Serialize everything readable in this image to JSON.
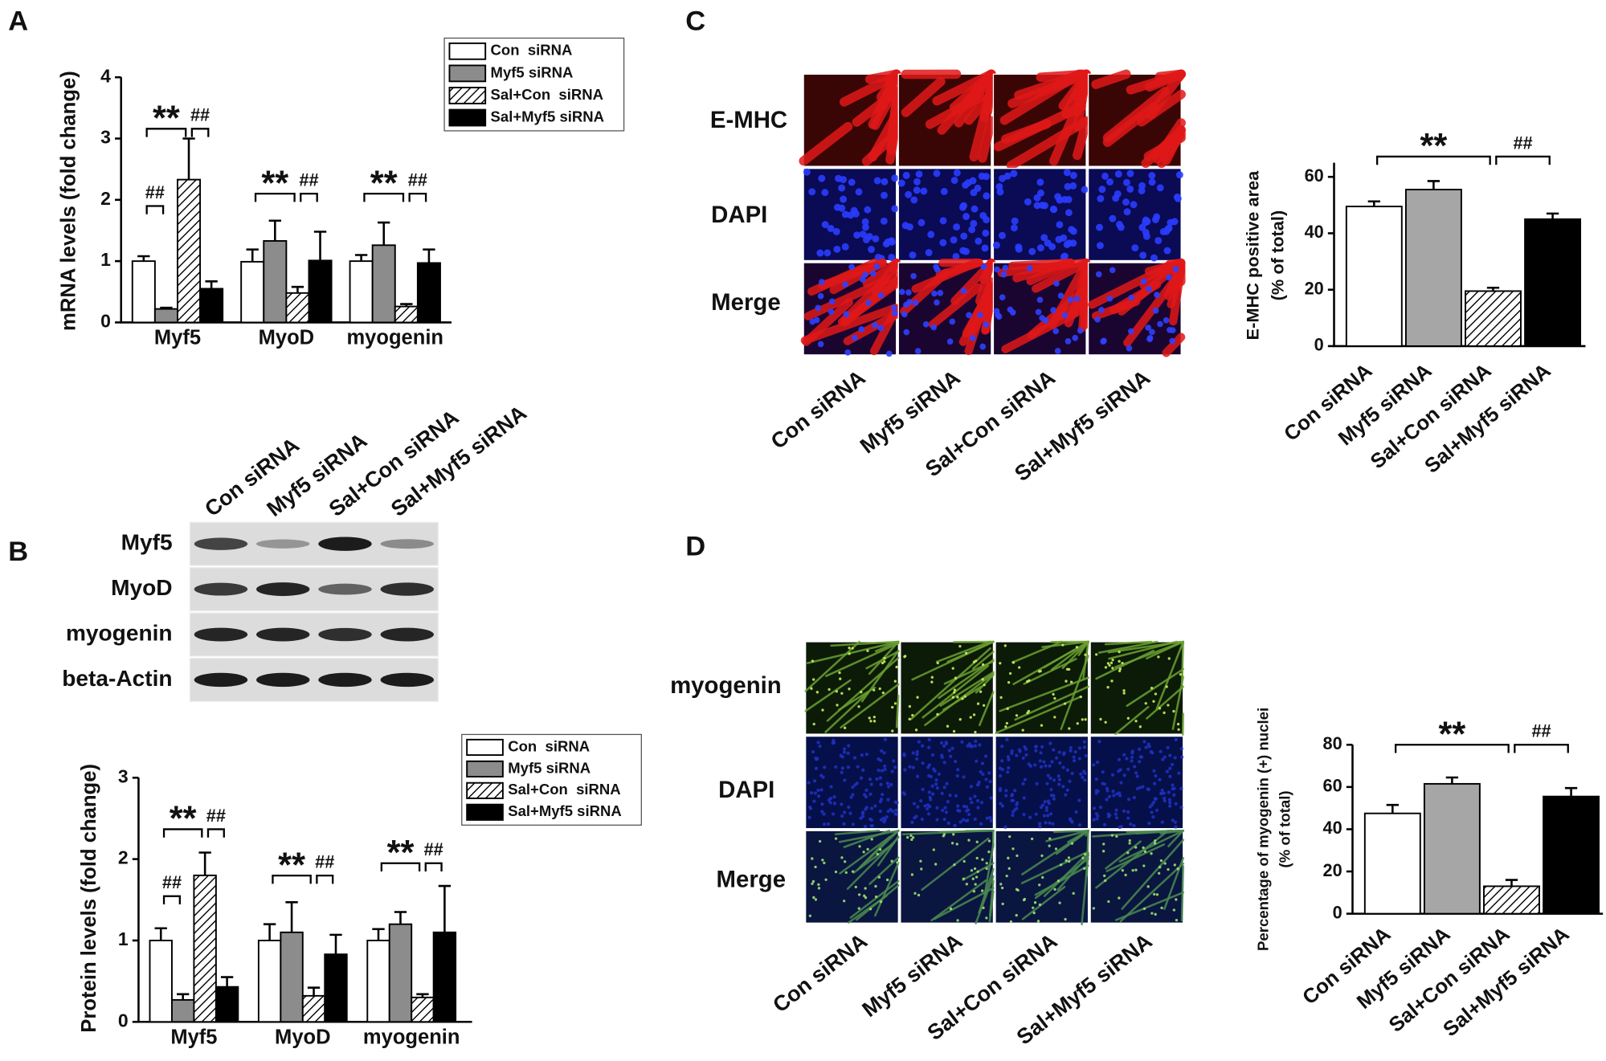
{
  "panel_labels": [
    "A",
    "B",
    "C",
    "D"
  ],
  "blot": {
    "lanes": [
      "Con siRNA",
      "Myf5 siRNA",
      "Sal+Con siRNA",
      "Sal+Myf5 siRNA"
    ],
    "rows": [
      "Myf5",
      "MyoD",
      "myogenin",
      "beta-Actin"
    ]
  },
  "micrograph_c": {
    "columns": [
      "Con siRNA",
      "Myf5 siRNA",
      "Sal+Con siRNA",
      "Sal+Myf5 siRNA"
    ],
    "rows": [
      "E-MHC",
      "DAPI",
      "Merge"
    ]
  },
  "micrograph_d": {
    "columns": [
      "Con siRNA",
      "Myf5 siRNA",
      "Sal+Con siRNA",
      "Sal+Myf5 siRNA"
    ],
    "rows": [
      "myogenin",
      "DAPI",
      "Merge"
    ]
  },
  "chart_data": [
    {
      "type": "grouped_bar",
      "ylabel": "mRNA levels (fold change)",
      "categories": [
        "Myf5",
        "MyoD",
        "myogenin"
      ],
      "series": [
        {
          "name": "Con  siRNA",
          "color": "#ffffff",
          "hatch": false,
          "values": [
            1.0,
            0.99,
            1.0
          ],
          "errors": [
            0.08,
            0.2,
            0.1
          ]
        },
        {
          "name": "Myf5 siRNA",
          "color": "#8c8c8c",
          "hatch": false,
          "values": [
            0.22,
            1.33,
            1.26
          ],
          "errors": [
            0.02,
            0.33,
            0.37
          ]
        },
        {
          "name": "Sal+Con  siRNA",
          "color": "#ffffff",
          "hatch": true,
          "values": [
            2.33,
            0.48,
            0.26
          ],
          "errors": [
            0.67,
            0.1,
            0.04
          ]
        },
        {
          "name": "Sal+Myf5 siRNA",
          "color": "#000000",
          "hatch": false,
          "values": [
            0.55,
            1.01,
            0.97
          ],
          "errors": [
            0.12,
            0.47,
            0.22
          ]
        }
      ],
      "ylim": [
        0,
        4
      ],
      "yticks": [
        0,
        1,
        2,
        3,
        4
      ],
      "legend": "top-right",
      "annotations": [
        "**",
        "##",
        "##",
        "**",
        "##",
        "**",
        "##"
      ]
    },
    {
      "type": "grouped_bar",
      "ylabel": "Protein levels (fold change)",
      "categories": [
        "Myf5",
        "MyoD",
        "myogenin"
      ],
      "series": [
        {
          "name": "Con  siRNA",
          "color": "#ffffff",
          "hatch": false,
          "values": [
            1.0,
            1.0,
            1.0
          ],
          "errors": [
            0.15,
            0.2,
            0.14
          ]
        },
        {
          "name": "Myf5 siRNA",
          "color": "#8c8c8c",
          "hatch": false,
          "values": [
            0.27,
            1.1,
            1.2
          ],
          "errors": [
            0.07,
            0.37,
            0.15
          ]
        },
        {
          "name": "Sal+Con  siRNA",
          "color": "#ffffff",
          "hatch": true,
          "values": [
            1.8,
            0.32,
            0.3
          ],
          "errors": [
            0.28,
            0.1,
            0.04
          ]
        },
        {
          "name": "Sal+Myf5 siRNA",
          "color": "#000000",
          "hatch": false,
          "values": [
            0.43,
            0.83,
            1.1
          ],
          "errors": [
            0.12,
            0.24,
            0.57
          ]
        }
      ],
      "ylim": [
        0,
        3
      ],
      "yticks": [
        0,
        1,
        2,
        3
      ],
      "legend": "top-right",
      "annotations": [
        "**",
        "##",
        "##",
        "**",
        "##",
        "**",
        "##"
      ]
    },
    {
      "type": "bar",
      "ylabel": [
        "E-MHC positive area",
        "(% of total)"
      ],
      "categories": [
        "Con siRNA",
        "Myf5 siRNA",
        "Sal+Con siRNA",
        "Sal+Myf5 siRNA"
      ],
      "values": [
        49.5,
        55.5,
        19.5,
        45
      ],
      "errors": [
        1.8,
        3,
        1.2,
        2
      ],
      "colors": [
        "#ffffff",
        "#a6a6a6",
        "#ffffff",
        "#000000"
      ],
      "hatched": [
        false,
        false,
        true,
        false
      ],
      "ylim": [
        0,
        65
      ],
      "yticks": [
        0,
        20,
        40,
        60
      ],
      "annotations": [
        "**",
        "##"
      ]
    },
    {
      "type": "bar",
      "ylabel": [
        "Percentage of myogenin (+) nuclei",
        "(% of total)"
      ],
      "categories": [
        "Con siRNA",
        "Myf5 siRNA",
        "Sal+Con siRNA",
        "Sal+Myf5 siRNA"
      ],
      "values": [
        47.5,
        61.5,
        13,
        55.5
      ],
      "errors": [
        4,
        3,
        3,
        4
      ],
      "colors": [
        "#ffffff",
        "#a6a6a6",
        "#ffffff",
        "#000000"
      ],
      "hatched": [
        false,
        false,
        true,
        false
      ],
      "ylim": [
        0,
        80
      ],
      "yticks": [
        0,
        20,
        40,
        60,
        80
      ],
      "annotations": [
        "**",
        "##"
      ]
    }
  ]
}
